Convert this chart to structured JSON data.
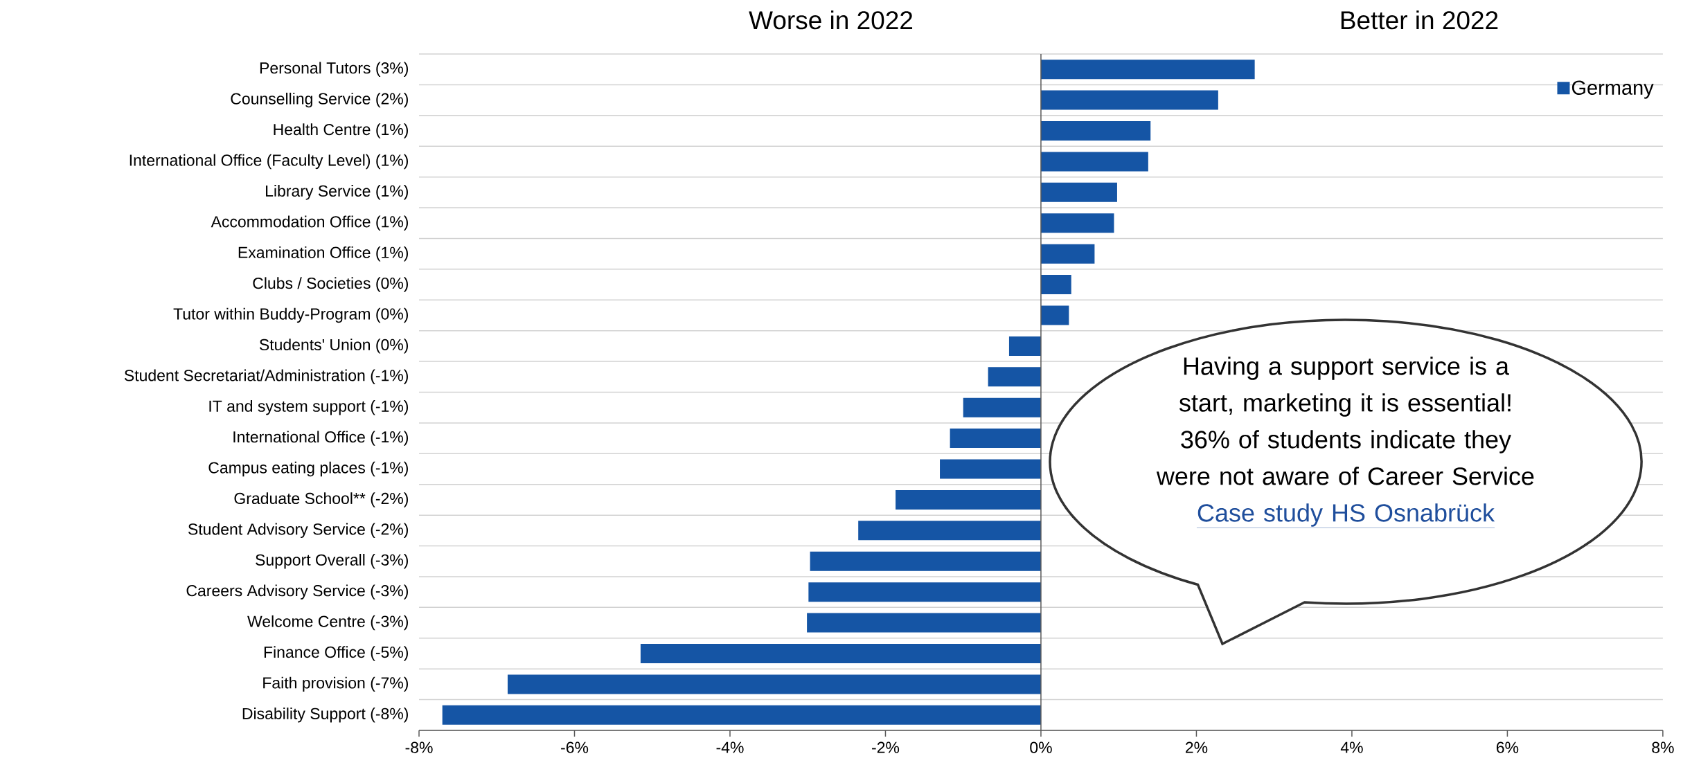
{
  "chart_data": {
    "type": "bar",
    "orientation": "horizontal",
    "categories": [
      "Personal Tutors (3%)",
      "Counselling Service (2%)",
      "Health Centre (1%)",
      "International Office (Faculty Level) (1%)",
      "Library Service (1%)",
      "Accommodation Office (1%)",
      "Examination Office (1%)",
      "Clubs / Societies (0%)",
      "Tutor within Buddy-Program (0%)",
      "Students' Union (0%)",
      "Student Secretariat/Administration (-1%)",
      "IT and system support (-1%)",
      "International Office (-1%)",
      "Campus eating places (-1%)",
      "Graduate School** (-2%)",
      "Student Advisory Service (-2%)",
      "Support Overall (-3%)",
      "Careers Advisory Service (-3%)",
      "Welcome Centre (-3%)",
      "Finance Office (-5%)",
      "Faith provision (-7%)",
      "Disability Support (-8%)"
    ],
    "series": [
      {
        "name": "Germany",
        "color": "#1555a5",
        "values": [
          2.75,
          2.28,
          1.41,
          1.38,
          0.98,
          0.94,
          0.69,
          0.39,
          0.36,
          -0.41,
          -0.68,
          -1.0,
          -1.17,
          -1.3,
          -1.87,
          -2.35,
          -2.97,
          -2.99,
          -3.01,
          -5.15,
          -6.86,
          -7.7
        ]
      }
    ],
    "xlim": [
      -8,
      8
    ],
    "xticks": [
      {
        "value": -8,
        "label": "-8%"
      },
      {
        "value": -6,
        "label": "-6%"
      },
      {
        "value": -4,
        "label": "-4%"
      },
      {
        "value": -2,
        "label": "-2%"
      },
      {
        "value": 0,
        "label": "0%"
      },
      {
        "value": 2,
        "label": "2%"
      },
      {
        "value": 4,
        "label": "4%"
      },
      {
        "value": 6,
        "label": "6%"
      },
      {
        "value": 8,
        "label": "8%"
      }
    ],
    "grid": "y",
    "legend": "top right",
    "annotations": [
      "Worse in 2022",
      "Better in 2022",
      "Having a support service is a start, marketing it is essential! 36% of students indicate they were not aware of Career Service",
      "Case study HS Osnabrück"
    ]
  }
}
